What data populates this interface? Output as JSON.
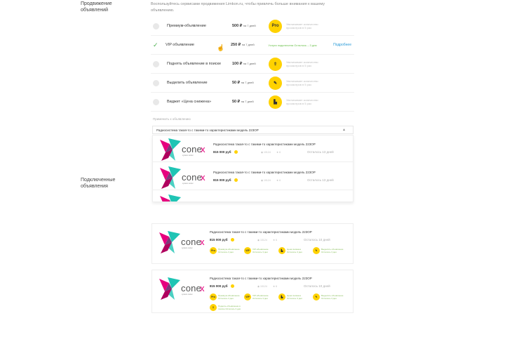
{
  "sections": {
    "promotion": "Продвижение объявлений",
    "connected": "Подключенные объявления"
  },
  "intro": "Воспользуйтесь сервисами продвижения Limkon.ru, чтобы привлечь больше внимания к вашему объявлению.",
  "services": [
    {
      "name": "Премиум-объявление",
      "price": "500 ₽",
      "period": "на 7 дней",
      "icon": "pro-badge-icon",
      "badge": "Pro",
      "desc": "Увеличивает количество просмотров в 5 раз",
      "selected": false
    },
    {
      "name": "VIP объявление",
      "price": "250 ₽",
      "period": "на 7 дней",
      "status": "Услуга подключена Осталось – 3 дня",
      "more": "Подробнее",
      "selected": true
    },
    {
      "name": "Поднять объявление в поиске",
      "price": "100 ₽",
      "period": "на 7 дней",
      "icon": "arrow-up-icon",
      "badge": "⇧",
      "desc": "Увеличивает количество просмотров в 5 раз",
      "selected": false
    },
    {
      "name": "Выделить объявление",
      "price": "50 ₽",
      "period": "на 7 дней",
      "icon": "marker-icon",
      "badge": "✎",
      "desc": "Увеличивает количество просмотров в 5 раз",
      "selected": false
    },
    {
      "name": "Виджет «Цена снижена»",
      "price": "50 ₽",
      "period": "на 7 дней",
      "icon": "price-down-icon",
      "badge": "▙",
      "desc": "Увеличивает количество просмотров в 5 раз",
      "selected": false
    }
  ],
  "apply": {
    "label": "Применить к объявлению",
    "selected": "Радиосистема такая-то с такими-то характеристиками модель 223ОР"
  },
  "logo": {
    "text": "cone",
    "accent": "x",
    "sub": "system center"
  },
  "dropdown_items": [
    {
      "title": "Радиосистема такая-то с такими-то характеристиками модель 223ОР",
      "price": "815 000 руб",
      "views": "10124",
      "favs": "6",
      "left": "Осталось 13 дней"
    },
    {
      "title": "Радиосистема такая-то с такими-то характеристиками модель 223ОР",
      "price": "815 000 руб",
      "views": "10124",
      "favs": "6",
      "left": "Осталось 13 дней"
    }
  ],
  "cards": [
    {
      "title": "Радиосистема такая-то с такими-то характеристиками модель 223ОР",
      "price": "815 000 руб",
      "views": "10124",
      "favs": "6",
      "left": "Осталось 10 дней",
      "services": [
        {
          "b": "Pro",
          "t": "Премиум-объявление Осталось 3 дня"
        },
        {
          "b": "VIP",
          "t": "VIP-объявление Осталось 3 дня"
        },
        {
          "b": "▙",
          "t": "Цена снижена Осталось 3 дня"
        },
        {
          "b": "✎",
          "t": "Выделить объявление Осталось 3 дня"
        }
      ]
    },
    {
      "title": "Радиосистема такая-то с такими-то характеристиками модель 223ОР",
      "price": "815 000 руб",
      "views": "10124",
      "favs": "6",
      "left": "Осталось 10 дней",
      "services": [
        {
          "b": "Pro",
          "t": "Премиум-объявление Осталось 3 дня"
        },
        {
          "b": "VIP",
          "t": "VIP-объявление Осталось 3 дня"
        },
        {
          "b": "▙",
          "t": "Цена снижена Осталось 3 дня"
        },
        {
          "b": "✎",
          "t": "Выделить объявление Осталось 3 дня"
        },
        {
          "b": "⇧",
          "t": "Поднять объявление в поиске Осталось 3 дня"
        }
      ]
    }
  ],
  "colors": {
    "accent": "#ffd200",
    "link": "#2a9bd8",
    "success": "#6bc04b",
    "brand_pink": "#e6007e",
    "brand_teal": "#1fc4b4"
  }
}
